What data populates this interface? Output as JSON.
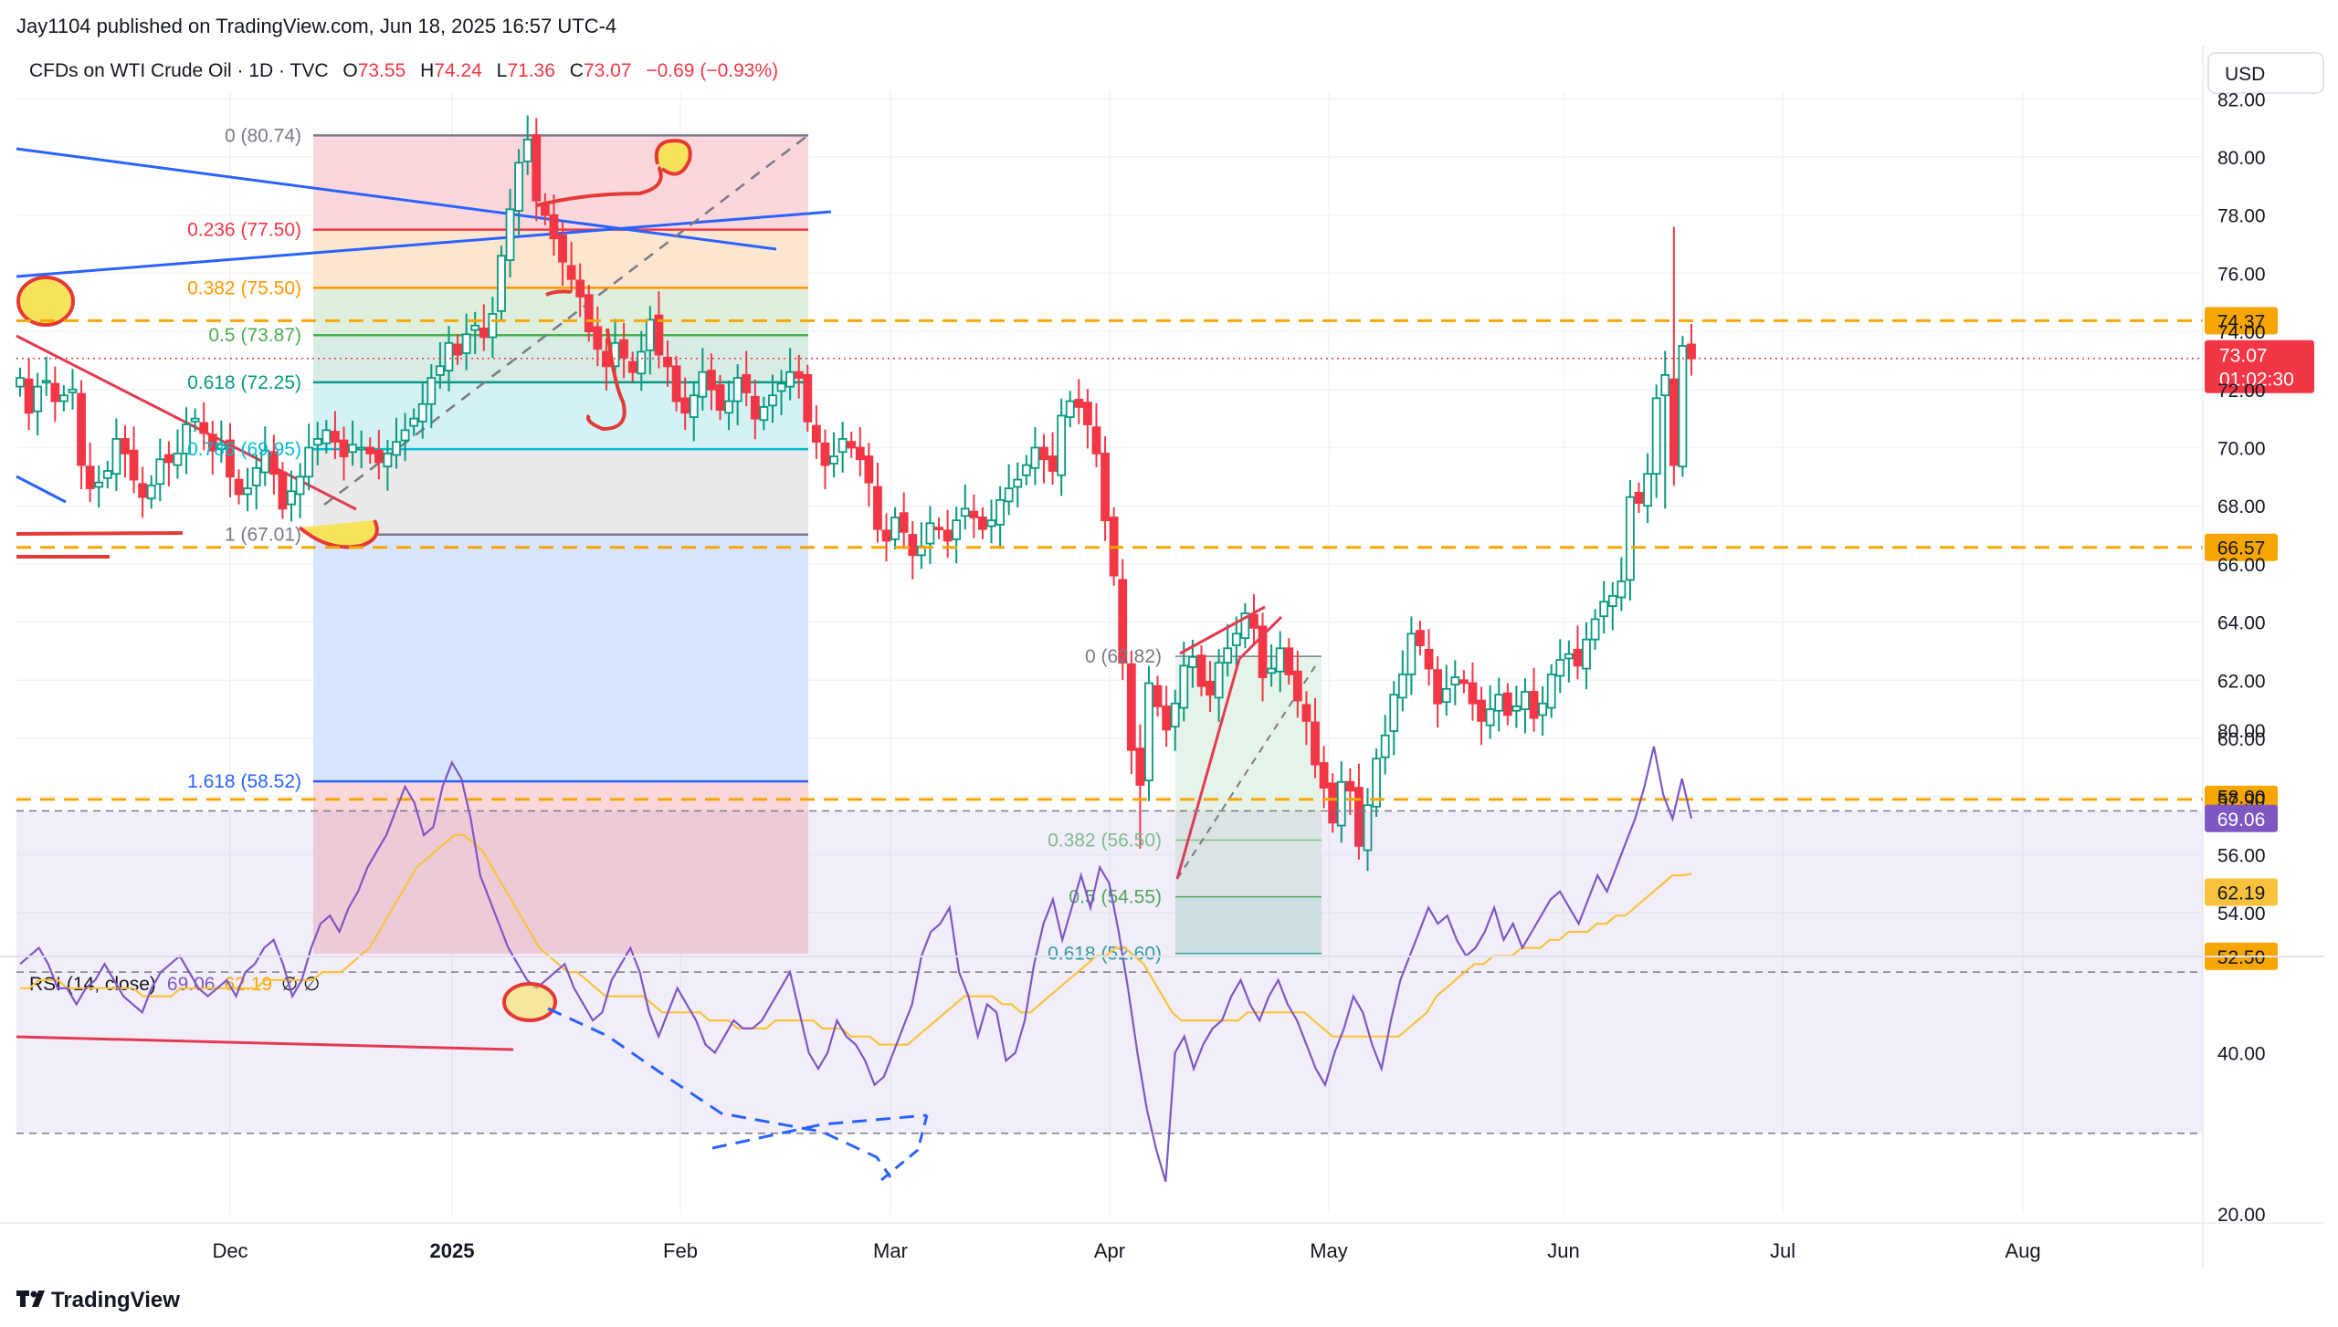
{
  "header": {
    "published": "Jay1104 published on TradingView.com, Jun 18, 2025 16:57 UTC-4",
    "symbol": "CFDs on WTI Crude Oil · 1D · TVC",
    "o_label": "O",
    "o_value": "73.55",
    "h_label": "H",
    "h_value": "74.24",
    "l_label": "L",
    "l_value": "71.36",
    "c_label": "C",
    "c_value": "73.07",
    "change": "−0.69 (−0.93%)",
    "currency": "USD"
  },
  "footer": {
    "brand": "TradingView"
  },
  "colors": {
    "up": "#089981",
    "down": "#f23645",
    "orange": "#f7a600",
    "blue": "#2962ff",
    "rsi": "#7e57c2",
    "rsi_ma": "#fbc02d",
    "markup": "#e53935"
  },
  "chart_data": [
    {
      "type": "candlestick",
      "title": "CFDs on WTI Crude Oil · 1D · TVC",
      "ylim": [
        52,
        82
      ],
      "y_ticks": [
        "54.00",
        "56.00",
        "58.00",
        "60.00",
        "62.00",
        "64.00",
        "66.00",
        "68.00",
        "70.00",
        "72.00",
        "74.00",
        "76.00",
        "78.00",
        "80.00",
        "82.00"
      ],
      "x_ticks": [
        "Dec",
        "2025",
        "Feb",
        "Mar",
        "Apr",
        "May",
        "Jun",
        "Jul",
        "Aug"
      ],
      "horizontal_levels": [
        {
          "price": 74.37,
          "label": "74.37",
          "style": "dashed"
        },
        {
          "price": 66.57,
          "label": "66.57",
          "style": "dashed"
        },
        {
          "price": 57.9,
          "label": "57.90",
          "style": "dashed"
        }
      ],
      "last_price": {
        "price": 73.07,
        "label": "73.07",
        "countdown": "01:02:30"
      },
      "axis_tags": [
        {
          "price": 52.5,
          "label": "52.50"
        }
      ],
      "fib_retracement_1": [
        {
          "label": "0 (80.74)",
          "price": 80.74
        },
        {
          "label": "0.236 (77.50)",
          "price": 77.5
        },
        {
          "label": "0.382 (75.50)",
          "price": 75.5
        },
        {
          "label": "0.5 (73.87)",
          "price": 73.87
        },
        {
          "label": "0.618 (72.25)",
          "price": 72.25
        },
        {
          "label": "0.786 (69.95)",
          "price": 69.95
        },
        {
          "label": "1 (67.01)",
          "price": 67.01
        },
        {
          "label": "1.618 (58.52)",
          "price": 58.52
        }
      ],
      "fib_retracement_2": [
        {
          "label": "0 (62.82)",
          "price": 62.82
        },
        {
          "label": "0.382 (56.50)",
          "price": 56.5
        },
        {
          "label": "0.5 (54.55)",
          "price": 54.55
        },
        {
          "label": "0.618 (52.60)",
          "price": 52.6
        }
      ],
      "closes": [
        72.4,
        71.2,
        72.1,
        72.3,
        71.6,
        71.8,
        72.0,
        69.4,
        68.6,
        68.8,
        69.2,
        70.3,
        69.8,
        68.9,
        68.3,
        68.7,
        69.6,
        69.5,
        69.8,
        70.8,
        71.0,
        70.5,
        69.9,
        70.1,
        69.0,
        68.4,
        68.6,
        69.3,
        69.9,
        69.1,
        67.9,
        68.5,
        69.0,
        70.0,
        70.3,
        70.6,
        70.2,
        69.7,
        70.1,
        70.0,
        69.8,
        69.5,
        69.8,
        70.2,
        70.6,
        71.0,
        71.5,
        72.4,
        72.8,
        73.6,
        73.2,
        73.9,
        74.2,
        73.8,
        74.6,
        76.6,
        78.2,
        79.8,
        80.6,
        78.5,
        78.0,
        77.2,
        76.4,
        75.8,
        75.2,
        74.0,
        73.4,
        72.8,
        73.6,
        73.1,
        72.6,
        73.3,
        74.4,
        73.2,
        72.8,
        71.6,
        71.2,
        71.8,
        72.6,
        72.0,
        71.3,
        71.6,
        72.4,
        71.9,
        71.0,
        71.4,
        71.8,
        72.2,
        72.6,
        72.4,
        70.9,
        70.2,
        69.4,
        69.7,
        70.3,
        70.0,
        69.6,
        68.8,
        67.2,
        66.8,
        67.6,
        67.1,
        66.3,
        66.6,
        67.4,
        67.2,
        66.8,
        67.5,
        67.9,
        67.6,
        67.2,
        67.5,
        68.2,
        68.6,
        68.9,
        69.4,
        70.0,
        69.6,
        69.2,
        71.1,
        71.6,
        71.4,
        70.8,
        69.8,
        67.5,
        65.6,
        62.6,
        59.6,
        58.4,
        61.9,
        61.1,
        60.3,
        61.2,
        62.5,
        62.8,
        61.8,
        61.5,
        62.6,
        63.1,
        63.6,
        64.3,
        63.8,
        62.1,
        62.4,
        63.1,
        62.2,
        61.3,
        60.6,
        59.1,
        58.3,
        57.1,
        58.5,
        58.2,
        56.3,
        57.7,
        59.3,
        60.1,
        61.5,
        62.2,
        63.6,
        63.2,
        62.4,
        61.2,
        61.7,
        62.1,
        61.9,
        61.2,
        60.6,
        61.0,
        61.5,
        60.8,
        61.1,
        61.6,
        60.7,
        61.2,
        62.2,
        62.7,
        62.9,
        62.5,
        63.4,
        64.1,
        64.7,
        64.9,
        65.4,
        68.3,
        68.1,
        69.1,
        71.7,
        72.5,
        69.4,
        73.5,
        73.07
      ],
      "rsi": {
        "title": "RSI (14, close)",
        "rsi_value": "69.06",
        "ma_value": "62.19",
        "symbols": "∅ ∅",
        "ylim": [
          20,
          80
        ],
        "y_ticks": [
          "20.00",
          "40.00",
          "60.00",
          "80.00"
        ],
        "levels": [
          70,
          50,
          30
        ],
        "series": [
          {
            "name": "RSI",
            "values": [
              51,
              52,
              53,
              51,
              48,
              48,
              46,
              48,
              49,
              51,
              49,
              47,
              46,
              45,
              48,
              50,
              51,
              52,
              50,
              48,
              47,
              48,
              49,
              47,
              50,
              51,
              53,
              54,
              51,
              47,
              49,
              53,
              56,
              57,
              55,
              58,
              60,
              63,
              65,
              67,
              70,
              73,
              71,
              67,
              68,
              73,
              76,
              74,
              69,
              62,
              59,
              56,
              53,
              51,
              49,
              48,
              49,
              50,
              51,
              48,
              46,
              44,
              45,
              49,
              51,
              53,
              50,
              45,
              42,
              45,
              48,
              46,
              44,
              41,
              40,
              42,
              44,
              43,
              43,
              44,
              46,
              48,
              50,
              45,
              40,
              38,
              40,
              44,
              42,
              41,
              39,
              36,
              37,
              40,
              43,
              46,
              52,
              55,
              56,
              58,
              50,
              47,
              42,
              46,
              45,
              39,
              40,
              44,
              51,
              56,
              59,
              54,
              58,
              62,
              58,
              63,
              61,
              55,
              48,
              40,
              33,
              28,
              24,
              40,
              42,
              38,
              41,
              43,
              44,
              47,
              49,
              46,
              44,
              47,
              49,
              46,
              44,
              41,
              38,
              36,
              40,
              43,
              47,
              45,
              41,
              38,
              44,
              49,
              52,
              55,
              58,
              56,
              57,
              54,
              52,
              53,
              55,
              58,
              54,
              56,
              53,
              55,
              57,
              59,
              60,
              58,
              56,
              59,
              62,
              60,
              63,
              66,
              69,
              73,
              78,
              72,
              69,
              74,
              69.06
            ]
          },
          {
            "name": "RSI-based MA",
            "values": [
              48,
              48,
              49,
              49,
              49,
              48,
              48,
              48,
              48,
              48,
              48,
              48,
              48,
              47,
              47,
              47,
              47,
              48,
              48,
              48,
              48,
              48,
              48,
              48,
              48,
              48,
              49,
              49,
              49,
              49,
              49,
              49,
              50,
              50,
              50,
              51,
              52,
              53,
              55,
              57,
              59,
              61,
              63,
              64,
              65,
              66,
              67,
              67,
              66,
              65,
              63,
              61,
              59,
              57,
              55,
              53,
              52,
              51,
              50,
              50,
              49,
              48,
              47,
              47,
              47,
              47,
              47,
              46,
              45,
              45,
              45,
              45,
              45,
              44,
              44,
              44,
              43,
              43,
              43,
              43,
              44,
              44,
              44,
              44,
              44,
              43,
              43,
              43,
              42,
              42,
              42,
              41,
              41,
              41,
              41,
              42,
              43,
              44,
              45,
              46,
              47,
              47,
              47,
              47,
              46,
              46,
              45,
              45,
              46,
              47,
              48,
              49,
              50,
              51,
              52,
              52,
              53,
              53,
              52,
              51,
              49,
              47,
              45,
              44,
              44,
              44,
              44,
              44,
              44,
              44,
              45,
              45,
              45,
              45,
              45,
              45,
              45,
              44,
              43,
              42,
              42,
              42,
              42,
              42,
              42,
              42,
              42,
              43,
              44,
              45,
              47,
              48,
              49,
              50,
              51,
              51,
              52,
              52,
              52,
              53,
              53,
              53,
              54,
              54,
              55,
              55,
              55,
              56,
              56,
              57,
              57,
              58,
              59,
              60,
              61,
              62,
              62,
              62.19
            ]
          }
        ]
      }
    }
  ]
}
